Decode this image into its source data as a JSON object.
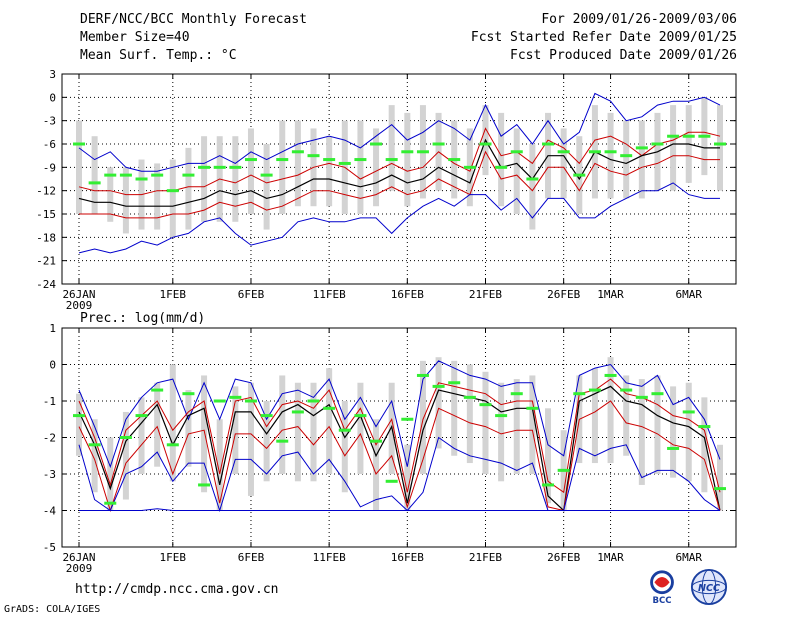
{
  "header": {
    "title": "DERF/NCC/BCC Monthly Forecast",
    "member_size": "Member Size=40",
    "variable_top": "Mean Surf. Temp.: °C",
    "period": "For 2009/01/26-2009/03/06",
    "started": "Fcst Started Refer Date 2009/01/25",
    "produced": "Fcst Produced Date 2009/01/26"
  },
  "footer": {
    "url": "http://cmdp.ncc.cma.gov.cn",
    "grads": "GrADS: COLA/IGES",
    "logo_left_text": "BCC",
    "logo_right_text": "NCC"
  },
  "colors": {
    "box": "#d3d3d3",
    "median": "#33ee33",
    "mean": "#000000",
    "inner": "#cc0000",
    "outer": "#0000cc",
    "grid": "#000000"
  },
  "chart_data": [
    {
      "type": "line",
      "title": "Mean Surf. Temp.: °C",
      "ylim": [
        -24,
        3
      ],
      "yticks": [
        3,
        0,
        -3,
        -6,
        -9,
        -12,
        -15,
        -18,
        -21,
        -24
      ],
      "xticks": [
        {
          "day": 1,
          "label": "26JAN",
          "sub": "2009"
        },
        {
          "day": 7,
          "label": "1FEB"
        },
        {
          "day": 12,
          "label": "6FEB"
        },
        {
          "day": 17,
          "label": "11FEB"
        },
        {
          "day": 22,
          "label": "16FEB"
        },
        {
          "day": 27,
          "label": "21FEB"
        },
        {
          "day": 32,
          "label": "26FEB"
        },
        {
          "day": 35,
          "label": "1MAR"
        },
        {
          "day": 40,
          "label": "6MAR"
        }
      ],
      "series": [
        {
          "name": "upper",
          "role": "outer",
          "values": [
            -6.5,
            -8,
            -7,
            -9,
            -9.5,
            -9.5,
            -9,
            -8.5,
            -8.5,
            -7.5,
            -8.5,
            -7,
            -8,
            -7,
            -6,
            -5.5,
            -5,
            -5.5,
            -6.5,
            -5,
            -3.5,
            -5.5,
            -4.5,
            -3,
            -4,
            -5.5,
            -1,
            -5,
            -3.5,
            -6,
            -3,
            -6,
            -4.5,
            0.5,
            -0.5,
            -3,
            -2.5,
            -1,
            -0.5,
            -0.5,
            0,
            -1
          ]
        },
        {
          "name": "inner_upper",
          "role": "inner",
          "values": [
            -11.5,
            -12,
            -12,
            -12.5,
            -12.5,
            -12,
            -12,
            -11.5,
            -11.5,
            -10.5,
            -11,
            -10,
            -11,
            -10.5,
            -10,
            -9,
            -8.5,
            -9,
            -10.5,
            -9.5,
            -8.5,
            -9.5,
            -9,
            -7,
            -8.5,
            -9.5,
            -4,
            -7.5,
            -7,
            -8.5,
            -5.5,
            -6.5,
            -8.5,
            -5.5,
            -5,
            -6,
            -7.5,
            -6,
            -5.5,
            -4.5,
            -4.5,
            -5
          ]
        },
        {
          "name": "mean",
          "role": "mean",
          "values": [
            -13,
            -13.5,
            -13.5,
            -14,
            -14,
            -14,
            -14,
            -13.5,
            -13,
            -12,
            -12.5,
            -12,
            -13,
            -12.5,
            -11.5,
            -10.5,
            -10.5,
            -11,
            -11.5,
            -11,
            -10,
            -11,
            -10.5,
            -9,
            -10,
            -11,
            -5.5,
            -9,
            -8.5,
            -10.5,
            -7.5,
            -7.5,
            -10.5,
            -7,
            -8,
            -8.5,
            -7.5,
            -7,
            -6,
            -6,
            -6.5,
            -6.5
          ]
        },
        {
          "name": "inner_lower",
          "role": "inner",
          "values": [
            -15,
            -15,
            -15,
            -15.5,
            -15.5,
            -15.5,
            -15,
            -15,
            -14.5,
            -13.5,
            -14,
            -13.5,
            -14.5,
            -14,
            -13,
            -12,
            -12,
            -12.5,
            -13,
            -12.5,
            -11.5,
            -12.5,
            -12,
            -10.5,
            -11.5,
            -12.5,
            -7,
            -10.5,
            -10,
            -12,
            -9,
            -9,
            -12,
            -8.5,
            -9.5,
            -10,
            -9,
            -8.5,
            -7.5,
            -7.5,
            -8,
            -8
          ]
        },
        {
          "name": "lower",
          "role": "outer",
          "values": [
            -20,
            -19.5,
            -20,
            -19.5,
            -18.5,
            -19,
            -18,
            -17.5,
            -16,
            -15.5,
            -17.5,
            -19,
            -18.5,
            -18,
            -16,
            -15.5,
            -16,
            -16,
            -15.5,
            -15.5,
            -17.5,
            -15.5,
            -14,
            -13,
            -14,
            -12.5,
            -12.5,
            -14.5,
            -13,
            -15.5,
            -13,
            -13,
            -15.5,
            -15.5,
            -14,
            -13,
            -12,
            -12,
            -11,
            -12.5,
            -13,
            -13
          ]
        }
      ],
      "boxes": [
        [
          -15,
          -3
        ],
        [
          -15,
          -5
        ],
        [
          -16,
          -9
        ],
        [
          -17.5,
          -9
        ],
        [
          -17,
          -8
        ],
        [
          -17,
          -8.5
        ],
        [
          -18,
          -8
        ],
        [
          -17,
          -6.5
        ],
        [
          -16,
          -5
        ],
        [
          -16,
          -5
        ],
        [
          -16,
          -5
        ],
        [
          -15,
          -4
        ],
        [
          -17,
          -6
        ],
        [
          -15,
          -3
        ],
        [
          -14,
          -3
        ],
        [
          -14,
          -4
        ],
        [
          -14,
          -5
        ],
        [
          -15,
          -3
        ],
        [
          -15,
          -3
        ],
        [
          -14,
          -4
        ],
        [
          -12,
          -1
        ],
        [
          -14,
          -2
        ],
        [
          -13,
          -1
        ],
        [
          -12,
          -2
        ],
        [
          -13,
          -3
        ],
        [
          -14,
          -4
        ],
        [
          -10,
          -1
        ],
        [
          -14,
          -2
        ],
        [
          -15,
          -4
        ],
        [
          -17,
          -6
        ],
        [
          -13,
          -2
        ],
        [
          -13,
          -4
        ],
        [
          -15,
          -5
        ],
        [
          -13,
          -1
        ],
        [
          -13,
          -2
        ],
        [
          -13,
          -3
        ],
        [
          -13,
          -3
        ],
        [
          -12,
          -2
        ],
        [
          -12,
          -1
        ],
        [
          -11,
          -1
        ],
        [
          -10,
          0
        ],
        [
          -12,
          -1
        ]
      ],
      "medians": [
        -6,
        -11,
        -10,
        -10,
        -10.5,
        -10,
        -12,
        -10,
        -9,
        -9,
        -9,
        -8,
        -10,
        -8,
        -7,
        -7.5,
        -8,
        -8.5,
        -8,
        -6,
        -8,
        -7,
        -7,
        -6,
        -8,
        -9,
        -6,
        -9,
        -7,
        -10.5,
        -6,
        -7,
        -10,
        -7,
        -7,
        -7.5,
        -6.5,
        -6,
        -5,
        -5,
        -5,
        -6
      ]
    },
    {
      "type": "line",
      "title": "Prec.: log(mm/d)",
      "ylim": [
        -5,
        1
      ],
      "yticks": [
        1,
        0,
        -1,
        -2,
        -3,
        -4,
        -5
      ],
      "xticks": [
        {
          "day": 1,
          "label": "26JAN",
          "sub": "2009"
        },
        {
          "day": 7,
          "label": "1FEB"
        },
        {
          "day": 12,
          "label": "6FEB"
        },
        {
          "day": 17,
          "label": "11FEB"
        },
        {
          "day": 22,
          "label": "16FEB"
        },
        {
          "day": 27,
          "label": "21FEB"
        },
        {
          "day": 32,
          "label": "26FEB"
        },
        {
          "day": 35,
          "label": "1MAR"
        },
        {
          "day": 40,
          "label": "6MAR"
        }
      ],
      "series": [
        {
          "name": "upper",
          "role": "outer",
          "values": [
            -0.7,
            -1.7,
            -2.8,
            -1.5,
            -0.9,
            -0.5,
            -0.4,
            -1.5,
            -0.5,
            -1.5,
            -0.4,
            -0.5,
            -1.5,
            -0.8,
            -0.7,
            -0.9,
            -0.4,
            -1.5,
            -0.9,
            -1.7,
            -1,
            -2.8,
            -0.4,
            0.1,
            -0.1,
            -0.3,
            -0.4,
            -0.6,
            -0.5,
            -0.5,
            -2.2,
            -2.5,
            -0.3,
            -0.1,
            0,
            -0.5,
            -0.6,
            -0.3,
            -1.1,
            -0.9,
            -1.5,
            -2.6
          ]
        },
        {
          "name": "inner_upper",
          "role": "inner",
          "values": [
            -1,
            -2,
            -3.3,
            -1.8,
            -1.4,
            -1,
            -1.8,
            -1.3,
            -1,
            -3,
            -1,
            -0.9,
            -1.7,
            -1.1,
            -1,
            -1.2,
            -0.7,
            -1.8,
            -1.2,
            -2.2,
            -1.5,
            -3.5,
            -1.5,
            -0.5,
            -0.6,
            -0.7,
            -0.8,
            -1.1,
            -1,
            -1,
            -3.2,
            -3.5,
            -0.8,
            -0.7,
            -0.4,
            -0.8,
            -0.9,
            -1.1,
            -1.4,
            -1.5,
            -1.8,
            -3.5
          ]
        },
        {
          "name": "mean",
          "role": "mean",
          "values": [
            -1.3,
            -2.2,
            -3.4,
            -2.1,
            -1.6,
            -1.1,
            -2.2,
            -1.4,
            -1.2,
            -3.3,
            -1.3,
            -1.3,
            -1.9,
            -1.3,
            -1.1,
            -1.4,
            -1.1,
            -2,
            -1.4,
            -2.5,
            -1.7,
            -3.8,
            -1.8,
            -0.7,
            -0.8,
            -0.9,
            -1,
            -1.3,
            -1.2,
            -1.2,
            -3.6,
            -4,
            -1,
            -0.8,
            -0.6,
            -1,
            -1.1,
            -1.4,
            -1.6,
            -1.7,
            -2,
            -4
          ]
        },
        {
          "name": "inner_lower",
          "role": "inner",
          "values": [
            -1.7,
            -2.6,
            -4,
            -2.7,
            -2.2,
            -1.7,
            -3,
            -1.9,
            -1.8,
            -3.8,
            -1.9,
            -1.9,
            -2.3,
            -1.8,
            -1.7,
            -2.2,
            -1.7,
            -2.5,
            -1.9,
            -3,
            -2.5,
            -3.9,
            -2.6,
            -1.2,
            -1.4,
            -1.6,
            -1.7,
            -1.9,
            -1.8,
            -1.8,
            -3.9,
            -4,
            -1.5,
            -1.3,
            -1,
            -1.6,
            -1.7,
            -1.9,
            -2.2,
            -2.3,
            -2.6,
            -4
          ]
        },
        {
          "name": "lower",
          "role": "outer",
          "values": [
            -2.2,
            -3.7,
            -4,
            -3,
            -2.8,
            -2.4,
            -3.2,
            -2.7,
            -2.7,
            -4,
            -2.6,
            -2.6,
            -3,
            -2.5,
            -2.4,
            -3,
            -2.6,
            -3.2,
            -3.9,
            -3.7,
            -3.6,
            -4,
            -3.5,
            -2,
            -2.3,
            -2.5,
            -2.6,
            -2.7,
            -2.9,
            -2.7,
            -4,
            -4,
            -2.3,
            -2.5,
            -2.3,
            -2.2,
            -3.1,
            -2.9,
            -2.9,
            -3.2,
            -3.7,
            -4
          ]
        },
        {
          "name": "floor",
          "role": "outer",
          "values": [
            -4,
            -4,
            -4,
            -4,
            -4,
            -3.95,
            -4,
            -4,
            -4,
            -4,
            -4,
            -4,
            -4,
            -4,
            -4,
            -4,
            -4,
            -4,
            -4,
            -4,
            -4,
            -4,
            -4,
            -4,
            -4,
            -4,
            -4,
            -4,
            -4,
            -4,
            -4,
            -4,
            -4,
            -4,
            -4,
            -4,
            -4,
            -4,
            -4,
            -4,
            -4,
            -4
          ]
        }
      ],
      "boxes": [
        [
          -2.5,
          -0.8
        ],
        [
          -3.5,
          -1.5
        ],
        [
          -4,
          -2
        ],
        [
          -3.7,
          -1.3
        ],
        [
          -3,
          -0.9
        ],
        [
          -2.8,
          -0.5
        ],
        [
          -3.2,
          0
        ],
        [
          -2.8,
          -0.7
        ],
        [
          -3.5,
          -0.3
        ],
        [
          -4,
          -1.5
        ],
        [
          -3,
          -0.6
        ],
        [
          -3.6,
          -0.5
        ],
        [
          -3.2,
          -1
        ],
        [
          -3,
          -0.3
        ],
        [
          -3.2,
          -0.5
        ],
        [
          -3.2,
          -0.5
        ],
        [
          -3,
          -0.1
        ],
        [
          -3.5,
          -1
        ],
        [
          -3,
          -0.5
        ],
        [
          -4,
          -1.5
        ],
        [
          -3,
          -0.5
        ],
        [
          -4,
          -2.2
        ],
        [
          -3,
          0.1
        ],
        [
          -2.3,
          0.2
        ],
        [
          -2.5,
          0.1
        ],
        [
          -2.7,
          0
        ],
        [
          -3,
          -0.2
        ],
        [
          -3.2,
          -0.5
        ],
        [
          -3,
          -0.4
        ],
        [
          -3,
          -0.3
        ],
        [
          -3.8,
          -1.2
        ],
        [
          -4,
          -1.8
        ],
        [
          -2.7,
          -0.3
        ],
        [
          -2.7,
          -0.1
        ],
        [
          -2.7,
          0.2
        ],
        [
          -2.5,
          -0.3
        ],
        [
          -3.3,
          -0.4
        ],
        [
          -3,
          -0.3
        ],
        [
          -3.1,
          -0.6
        ],
        [
          -3.2,
          -0.5
        ],
        [
          -3.5,
          -0.9
        ],
        [
          -4,
          -2.2
        ]
      ],
      "medians": [
        -1.4,
        -2.2,
        -3.8,
        -2,
        -1.4,
        -0.7,
        -2.2,
        -0.8,
        -3.3,
        -1,
        -0.9,
        -1,
        -1.4,
        -2.1,
        -1.3,
        -1,
        -1.2,
        -1.8,
        -1.4,
        -2.1,
        -3.2,
        -1.5,
        -0.3,
        -0.6,
        -0.5,
        -0.9,
        -1.1,
        -1.4,
        -0.8,
        -1.2,
        -3.3,
        -2.9,
        -0.8,
        -0.7,
        -0.3,
        -0.7,
        -0.9,
        -0.8,
        -2.3,
        -1.3,
        -1.7,
        -3.4
      ]
    }
  ]
}
